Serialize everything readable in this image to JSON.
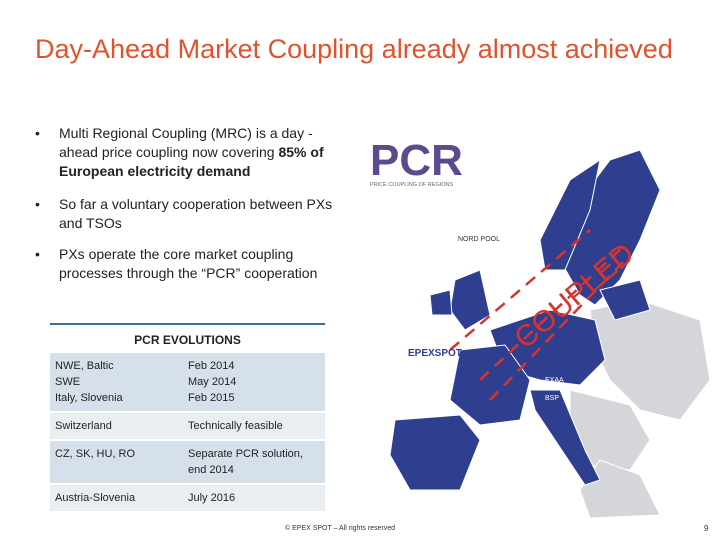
{
  "header": {
    "title": "Day-Ahead Market Coupling already almost achieved"
  },
  "bullets": [
    {
      "text": "Multi Regional Coupling (MRC) is a day -ahead price coupling now covering ",
      "bold": "85% of European electricity demand"
    },
    {
      "text": "So far a voluntary cooperation between PXs and TSOs"
    },
    {
      "text": "PXs operate the core market coupling processes through the “PCR” cooperation"
    }
  ],
  "table": {
    "title": "PCR EVOLUTIONS",
    "rows": [
      [
        "NWE, Baltic\nSWE\nItaly, Slovenia",
        "Feb 2014\nMay 2014\nFeb 2015"
      ],
      [
        "Switzerland",
        "Technically feasible"
      ],
      [
        "CZ, SK, HU, RO",
        "Separate PCR solution, end 2014"
      ],
      [
        "Austria-Slovenia",
        "July 2016"
      ]
    ]
  },
  "map": {
    "logo": "PCR",
    "logo_subtitle": "PRICE COUPLING OF REGIONS",
    "stamp": "COUPLED",
    "labels": [
      "NORD POOL",
      "EPEXSPOT",
      "OMIE",
      "EXAA",
      "BSP",
      "GME"
    ]
  },
  "footer": {
    "copyright": "© EPEX SPOT – All rights reserved",
    "page": "9"
  }
}
